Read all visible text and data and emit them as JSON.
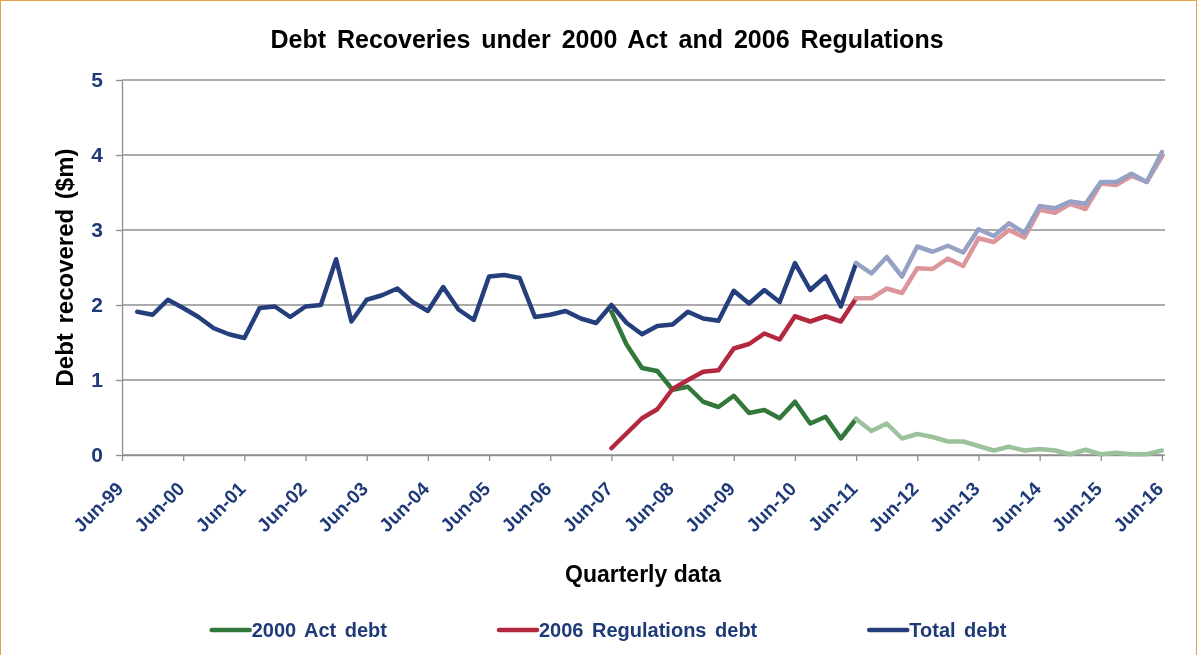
{
  "chart_data": {
    "type": "line",
    "title": "Debt Recoveries under 2000 Act and 2006 Regulations",
    "xlabel": "Quarterly data",
    "ylabel": "Debt recovered ($m)",
    "categories": [
      "Jun-99",
      null,
      null,
      null,
      "Jun-00",
      null,
      null,
      null,
      "Jun-01",
      null,
      null,
      null,
      "Jun-02",
      null,
      null,
      null,
      "Jun-03",
      null,
      null,
      null,
      "Jun-04",
      null,
      null,
      null,
      "Jun-05",
      null,
      null,
      null,
      "Jun-06",
      null,
      null,
      null,
      "Jun-07",
      null,
      null,
      null,
      "Jun-08",
      null,
      null,
      null,
      "Jun-09",
      null,
      null,
      null,
      "Jun-10",
      null,
      null,
      null,
      "Jun-11",
      null,
      null,
      null,
      "Jun-12",
      null,
      null,
      null,
      "Jun-13",
      null,
      null,
      null,
      "Jun-14",
      null,
      null,
      null,
      "Jun-15",
      null,
      null,
      null,
      "Jun-16"
    ],
    "ylim": [
      0,
      5
    ],
    "yticks": [
      0,
      1,
      2,
      3,
      4,
      5
    ],
    "grid": "y",
    "legend": "bottom",
    "series": [
      {
        "name": "2000 Act debt",
        "color": "#31783a",
        "values": [
          null,
          null,
          null,
          null,
          null,
          null,
          null,
          null,
          null,
          null,
          null,
          null,
          null,
          null,
          null,
          null,
          null,
          null,
          null,
          null,
          null,
          null,
          null,
          null,
          null,
          null,
          null,
          null,
          null,
          null,
          null,
          null,
          1.91,
          1.47,
          1.16,
          1.12,
          0.87,
          0.91,
          0.71,
          0.64,
          0.79,
          0.56,
          0.6,
          0.49,
          0.71,
          0.42,
          0.51,
          0.22,
          0.48,
          null,
          null,
          null,
          null,
          null,
          null,
          null,
          null,
          null,
          null,
          null,
          null,
          null,
          null,
          null,
          null,
          null,
          null,
          null,
          null
        ]
      },
      {
        "name": "2006 Regulations debt",
        "color": "#b3283f",
        "values": [
          null,
          null,
          null,
          null,
          null,
          null,
          null,
          null,
          null,
          null,
          null,
          null,
          null,
          null,
          null,
          null,
          null,
          null,
          null,
          null,
          null,
          null,
          null,
          null,
          null,
          null,
          null,
          null,
          null,
          null,
          null,
          null,
          0.09,
          0.29,
          0.49,
          0.61,
          0.88,
          1.0,
          1.11,
          1.13,
          1.42,
          1.48,
          1.62,
          1.54,
          1.85,
          1.78,
          1.85,
          1.78,
          2.09,
          null,
          null,
          null,
          null,
          null,
          null,
          null,
          null,
          null,
          null,
          null,
          null,
          null,
          null,
          null,
          null,
          null,
          null,
          null,
          null
        ]
      },
      {
        "name": "Total debt",
        "color": "#243f7b",
        "values": [
          null,
          1.91,
          1.87,
          2.07,
          1.96,
          1.84,
          1.69,
          1.61,
          1.56,
          1.96,
          1.98,
          1.84,
          1.98,
          2.0,
          2.61,
          1.78,
          2.07,
          2.13,
          2.22,
          2.04,
          1.92,
          2.24,
          1.94,
          1.8,
          2.38,
          2.4,
          2.36,
          1.84,
          1.87,
          1.92,
          1.82,
          1.76,
          2.0,
          1.76,
          1.61,
          1.72,
          1.74,
          1.91,
          1.82,
          1.79,
          2.19,
          2.02,
          2.2,
          2.04,
          2.56,
          2.2,
          2.38,
          1.98,
          2.56,
          null,
          null,
          null,
          null,
          null,
          null,
          null,
          null,
          null,
          null,
          null,
          null,
          null,
          null,
          null,
          null,
          null,
          null,
          null,
          null
        ]
      },
      {
        "color": "#9cc29c",
        "values": [
          null,
          null,
          null,
          null,
          null,
          null,
          null,
          null,
          null,
          null,
          null,
          null,
          null,
          null,
          null,
          null,
          null,
          null,
          null,
          null,
          null,
          null,
          null,
          null,
          null,
          null,
          null,
          null,
          null,
          null,
          null,
          null,
          null,
          null,
          null,
          null,
          null,
          null,
          null,
          null,
          null,
          null,
          null,
          null,
          null,
          null,
          null,
          null,
          0.48,
          0.32,
          0.42,
          0.22,
          0.28,
          0.24,
          0.18,
          0.18,
          0.12,
          0.06,
          0.11,
          0.06,
          0.08,
          0.06,
          0.01,
          0.07,
          0.01,
          0.03,
          0.01,
          0.01,
          0.06
        ]
      },
      {
        "color": "#dd959c",
        "values": [
          null,
          null,
          null,
          null,
          null,
          null,
          null,
          null,
          null,
          null,
          null,
          null,
          null,
          null,
          null,
          null,
          null,
          null,
          null,
          null,
          null,
          null,
          null,
          null,
          null,
          null,
          null,
          null,
          null,
          null,
          null,
          null,
          null,
          null,
          null,
          null,
          null,
          null,
          null,
          null,
          null,
          null,
          null,
          null,
          null,
          null,
          null,
          null,
          2.09,
          2.09,
          2.22,
          2.16,
          2.49,
          2.48,
          2.62,
          2.52,
          2.89,
          2.84,
          3.0,
          2.9,
          3.27,
          3.23,
          3.35,
          3.28,
          3.62,
          3.6,
          3.72,
          3.64,
          3.98
        ]
      },
      {
        "color": "#95a2c5",
        "values": [
          null,
          null,
          null,
          null,
          null,
          null,
          null,
          null,
          null,
          null,
          null,
          null,
          null,
          null,
          null,
          null,
          null,
          null,
          null,
          null,
          null,
          null,
          null,
          null,
          null,
          null,
          null,
          null,
          null,
          null,
          null,
          null,
          null,
          null,
          null,
          null,
          null,
          null,
          null,
          null,
          null,
          null,
          null,
          null,
          null,
          null,
          null,
          null,
          2.56,
          2.42,
          2.64,
          2.38,
          2.78,
          2.71,
          2.79,
          2.7,
          3.01,
          2.92,
          3.09,
          2.96,
          3.32,
          3.29,
          3.38,
          3.35,
          3.64,
          3.64,
          3.75,
          3.64,
          4.04
        ]
      }
    ]
  }
}
